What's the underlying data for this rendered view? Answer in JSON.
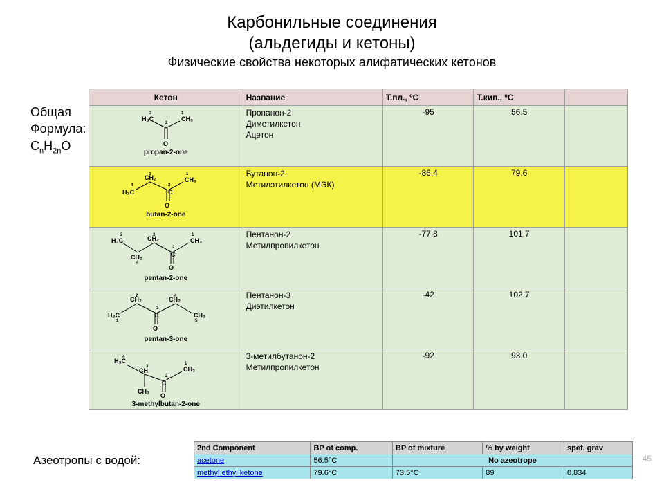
{
  "title_line1": "Карбонильные соединения",
  "title_line2": "(альдегиды и кетоны)",
  "subtitle": "Физические свойства некоторых алифатических кетонов",
  "sidebar": {
    "l1": "Общая",
    "l2": "Формула:",
    "l3_html": "C<sub>n</sub>H<sub>2n</sub>O"
  },
  "page_num": "45",
  "main_table": {
    "header_bg": "#e6d3d3",
    "cols": [
      "Кетон",
      "Название",
      "Т.пл., ºС",
      "Т.кип., ºС",
      ""
    ],
    "rows": [
      {
        "bg": "#e0edd6",
        "struct_label": "propan-2-one",
        "names": [
          "Пропанон-2",
          "Диметилкетон",
          "Ацетон"
        ],
        "mp": "-95",
        "bp": "56.5"
      },
      {
        "bg": "#f5f24a",
        "struct_label": "butan-2-one",
        "names": [
          "Бутанон-2",
          "Метилэтилкетон (МЭК)"
        ],
        "mp": "-86.4",
        "bp": "79.6"
      },
      {
        "bg": "#e0edd6",
        "struct_label": "pentan-2-one",
        "names": [
          "Пентанон-2",
          "Метилпропилкетон"
        ],
        "mp": "-77.8",
        "bp": "101.7"
      },
      {
        "bg": "#e0edd6",
        "struct_label": "pentan-3-one",
        "names": [
          "Пентанон-3",
          "Диэтилкетон"
        ],
        "mp": "-42",
        "bp": "102.7"
      },
      {
        "bg": "#e0edd6",
        "struct_label": "3-methylbutan-2-one",
        "names": [
          "3-метилбутанон-2",
          "Метилпропилкетон"
        ],
        "mp": "-92",
        "bp": "93.0"
      }
    ]
  },
  "azeo_label": "Азеотропы с водой:",
  "azeo_table": {
    "header_bg": "#d4d4d4",
    "row_bg": "#a8e4ec",
    "cols": [
      "2nd Component",
      "BP of comp.",
      "BP of mixture",
      "% by weight",
      "spef. grav"
    ],
    "rows": [
      {
        "comp": "acetone",
        "bp_comp": "56.5°C",
        "no_azeo": "No azeotrope"
      },
      {
        "comp": "methyl ethyl ketone",
        "bp_comp": "79.6°C",
        "bp_mix": "73.5°C",
        "pct": "89",
        "sg": "0.834"
      }
    ]
  },
  "svg": {
    "stroke": "#000000",
    "label_font": "9px Arial",
    "small_font": "6px Arial"
  }
}
